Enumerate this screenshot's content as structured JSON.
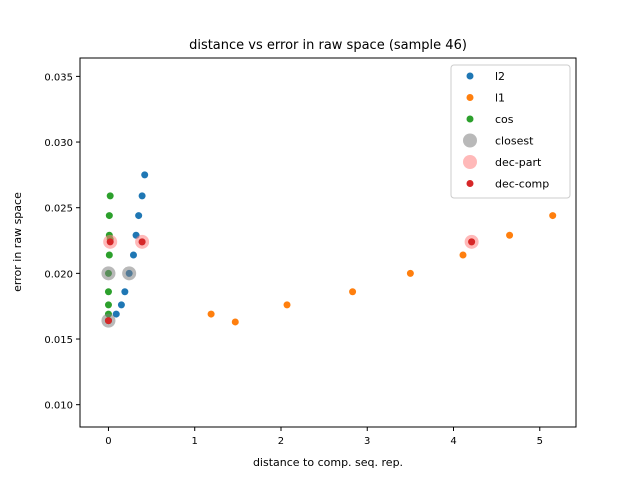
{
  "chart_data": {
    "type": "scatter",
    "title": "distance vs error in raw space (sample 46)",
    "xlabel": "distance to comp. seq. rep.",
    "ylabel": "error in raw space",
    "xlim": [
      -0.33,
      5.42
    ],
    "ylim": [
      0.0083,
      0.0364
    ],
    "xticks": [
      0,
      1,
      2,
      3,
      4,
      5
    ],
    "yticks": [
      0.01,
      0.015,
      0.02,
      0.025,
      0.03,
      0.035
    ],
    "ytick_labels": [
      "0.010",
      "0.015",
      "0.020",
      "0.025",
      "0.030",
      "0.035"
    ],
    "grid": false,
    "legend_position": "top-right",
    "series": [
      {
        "name": "l2",
        "color": "#1f77b4",
        "marker": "dot",
        "points": [
          [
            0.0,
            0.0164
          ],
          [
            0.09,
            0.0169
          ],
          [
            0.15,
            0.0176
          ],
          [
            0.19,
            0.0186
          ],
          [
            0.24,
            0.02
          ],
          [
            0.29,
            0.0214
          ],
          [
            0.32,
            0.0229
          ],
          [
            0.35,
            0.0244
          ],
          [
            0.39,
            0.0259
          ],
          [
            0.42,
            0.0275
          ],
          [
            0.39,
            0.0224
          ]
        ]
      },
      {
        "name": "l1",
        "color": "#ff7f0e",
        "marker": "dot",
        "points": [
          [
            0.0,
            0.0164
          ],
          [
            1.19,
            0.0169
          ],
          [
            1.47,
            0.0163
          ],
          [
            2.07,
            0.0176
          ],
          [
            2.83,
            0.0186
          ],
          [
            3.5,
            0.02
          ],
          [
            4.11,
            0.0214
          ],
          [
            4.21,
            0.0224
          ],
          [
            4.65,
            0.0229
          ],
          [
            5.15,
            0.0244
          ]
        ]
      },
      {
        "name": "cos",
        "color": "#2ca02c",
        "marker": "dot",
        "points": [
          [
            0.0,
            0.0164
          ],
          [
            0.0,
            0.0169
          ],
          [
            0.0,
            0.0176
          ],
          [
            0.0,
            0.0186
          ],
          [
            0.0,
            0.02
          ],
          [
            0.01,
            0.0214
          ],
          [
            0.01,
            0.0229
          ],
          [
            0.01,
            0.0244
          ],
          [
            0.02,
            0.0259
          ],
          [
            0.02,
            0.0226
          ]
        ]
      },
      {
        "name": "closest",
        "color": "#7f7f7f",
        "marker": "ring",
        "points": [
          [
            0.0,
            0.0164
          ],
          [
            0.0,
            0.02
          ],
          [
            0.24,
            0.02
          ]
        ]
      },
      {
        "name": "dec-part",
        "color": "#ff7f7f",
        "marker": "ring",
        "points": [
          [
            0.02,
            0.0224
          ],
          [
            0.39,
            0.0224
          ],
          [
            4.21,
            0.0224
          ]
        ]
      },
      {
        "name": "dec-comp",
        "color": "#d62728",
        "marker": "dot",
        "points": [
          [
            0.0,
            0.0164
          ],
          [
            0.02,
            0.0224
          ],
          [
            0.39,
            0.0224
          ],
          [
            4.21,
            0.0224
          ]
        ]
      }
    ]
  }
}
